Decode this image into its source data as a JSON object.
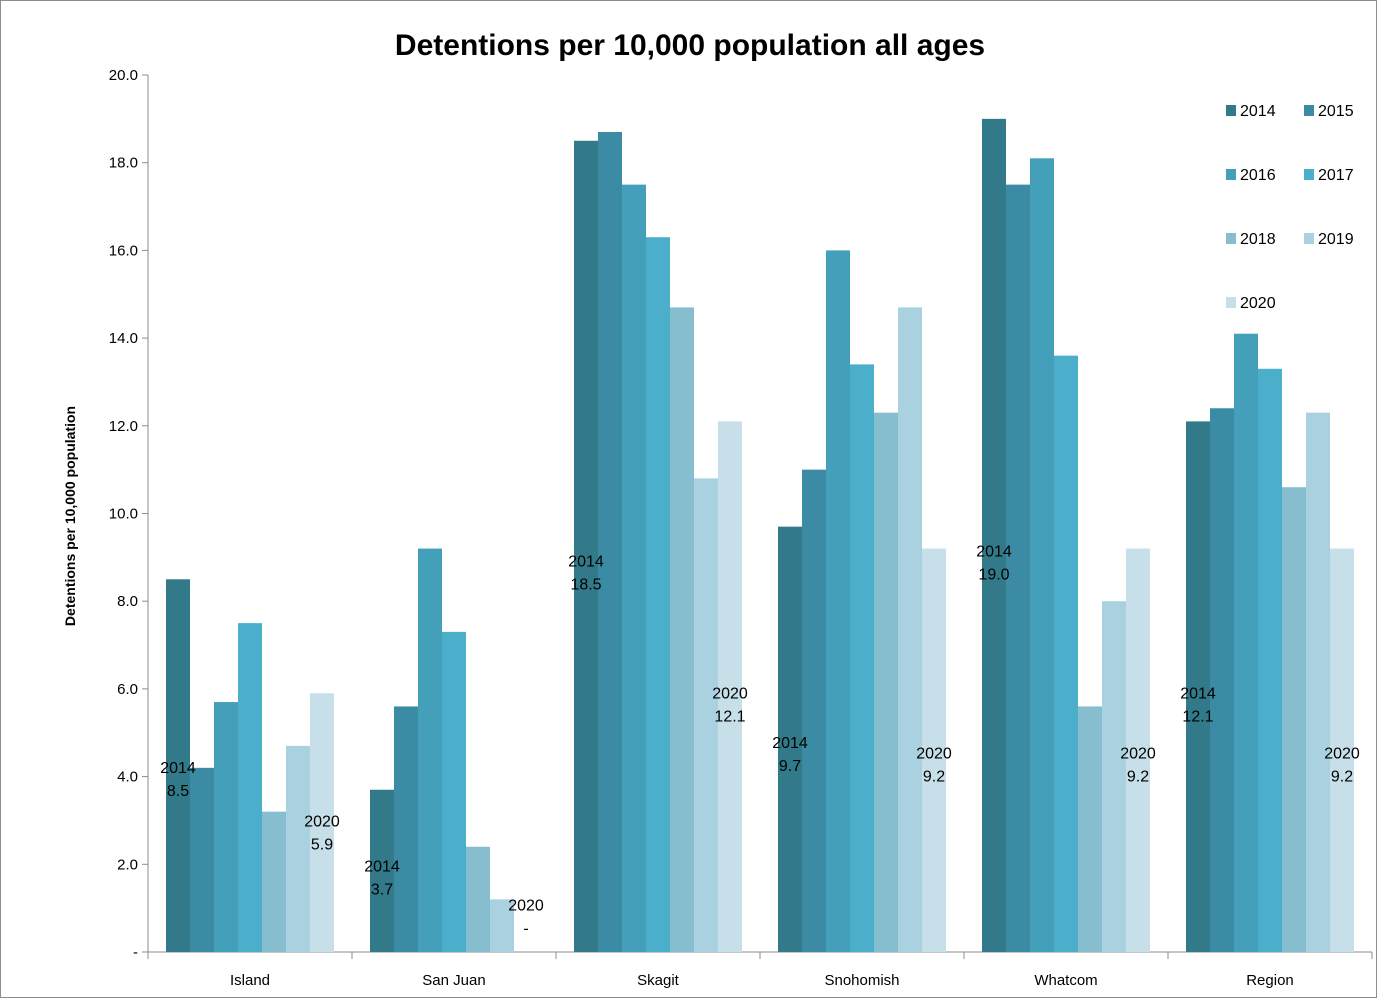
{
  "chart_data": {
    "type": "bar",
    "title": "Detentions per 10,000 population all ages",
    "ylabel": "Detentions per 10,000 population",
    "xlabel": "",
    "ylim": [
      0,
      20
    ],
    "yticks": [
      {
        "value": 0,
        "label": "-"
      },
      {
        "value": 2,
        "label": "2.0"
      },
      {
        "value": 4,
        "label": "4.0"
      },
      {
        "value": 6,
        "label": "6.0"
      },
      {
        "value": 8,
        "label": "8.0"
      },
      {
        "value": 10,
        "label": "10.0"
      },
      {
        "value": 12,
        "label": "12.0"
      },
      {
        "value": 14,
        "label": "14.0"
      },
      {
        "value": 16,
        "label": "16.0"
      },
      {
        "value": 18,
        "label": "18.0"
      },
      {
        "value": 20,
        "label": "20.0"
      }
    ],
    "categories": [
      "Island",
      "San Juan",
      "Skagit",
      "Snohomish",
      "Whatcom",
      "Region"
    ],
    "legend_position": "top-right",
    "series": [
      {
        "name": "2014",
        "color": "#327a8a",
        "values": [
          8.5,
          3.7,
          18.5,
          9.7,
          19.0,
          12.1
        ]
      },
      {
        "name": "2015",
        "color": "#3a8ba3",
        "values": [
          4.2,
          5.6,
          18.7,
          11.0,
          17.5,
          12.4
        ]
      },
      {
        "name": "2016",
        "color": "#449fba",
        "values": [
          5.7,
          9.2,
          17.5,
          16.0,
          18.1,
          14.1
        ]
      },
      {
        "name": "2017",
        "color": "#4baecb",
        "values": [
          7.5,
          7.3,
          16.3,
          13.4,
          13.6,
          13.3
        ]
      },
      {
        "name": "2018",
        "color": "#86bed0",
        "values": [
          3.2,
          2.4,
          14.7,
          12.3,
          5.6,
          10.6
        ]
      },
      {
        "name": "2019",
        "color": "#a9d1e0",
        "values": [
          4.7,
          1.2,
          10.8,
          14.7,
          8.0,
          12.3
        ]
      },
      {
        "name": "2020",
        "color": "#c6dfe8",
        "values": [
          5.9,
          0,
          12.1,
          9.2,
          9.2,
          9.2
        ]
      }
    ],
    "data_labels": [
      {
        "category": 0,
        "series": 0,
        "year": "2014",
        "value": "8.5"
      },
      {
        "category": 0,
        "series": 6,
        "year": "2020",
        "value": "5.9"
      },
      {
        "category": 1,
        "series": 0,
        "year": "2014",
        "value": "3.7"
      },
      {
        "category": 1,
        "series": 6,
        "year": "2020",
        "value": "-"
      },
      {
        "category": 2,
        "series": 0,
        "year": "2014",
        "value": "18.5"
      },
      {
        "category": 2,
        "series": 6,
        "year": "2020",
        "value": "12.1"
      },
      {
        "category": 3,
        "series": 0,
        "year": "2014",
        "value": "9.7"
      },
      {
        "category": 3,
        "series": 6,
        "year": "2020",
        "value": "9.2"
      },
      {
        "category": 4,
        "series": 0,
        "year": "2014",
        "value": "19.0"
      },
      {
        "category": 4,
        "series": 6,
        "year": "2020",
        "value": "9.2"
      },
      {
        "category": 5,
        "series": 0,
        "year": "2014",
        "value": "12.1"
      },
      {
        "category": 5,
        "series": 6,
        "year": "2020",
        "value": "9.2"
      }
    ]
  }
}
